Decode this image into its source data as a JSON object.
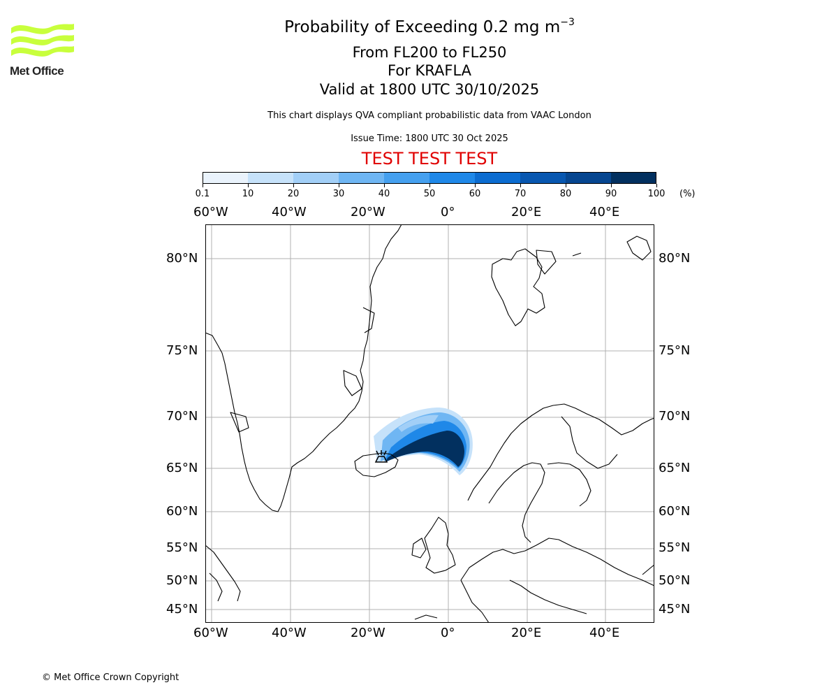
{
  "header": {
    "title_prefix": "Probability of Exceeding 0.2 mg m",
    "title_exponent": "−3",
    "level_range": "From FL200 to FL250",
    "volcano": "For KRAFLA",
    "valid_time": "Valid at 1800 UTC 30/10/2025",
    "description": "This chart displays QVA compliant probabilistic data from VAAC London",
    "issue_time": "Issue Time: 1800 UTC 30 Oct 2025",
    "test_banner": "TEST TEST TEST",
    "test_color": "#e00000"
  },
  "logo": {
    "brand": "Met Office",
    "icon": "met-office-wave-logo",
    "wave_color": "#c8ff3c"
  },
  "colorbar": {
    "unit": "(%)",
    "ticks": [
      "0.1",
      "10",
      "20",
      "30",
      "40",
      "50",
      "60",
      "70",
      "80",
      "90",
      "100"
    ],
    "colors": [
      "#eaf3fc",
      "#c6e2fa",
      "#a2cff7",
      "#6fb6f3",
      "#45a0ef",
      "#1f88e8",
      "#0c6cd0",
      "#0857b0",
      "#064690",
      "#02305f"
    ]
  },
  "map": {
    "projection": "polar-stereographic",
    "grid": true,
    "lon_labels": [
      "60°W",
      "40°W",
      "20°W",
      "0°",
      "20°E",
      "40°E"
    ],
    "lat_labels": [
      "80°N",
      "75°N",
      "70°N",
      "65°N",
      "60°N",
      "55°N",
      "50°N",
      "45°N"
    ],
    "volcano_marker": "volcano-icon",
    "plume_probability": "50-100% core extending east of Iceland, lower probability fringe to the north"
  },
  "footer": {
    "copyright": "© Met Office Crown Copyright"
  }
}
